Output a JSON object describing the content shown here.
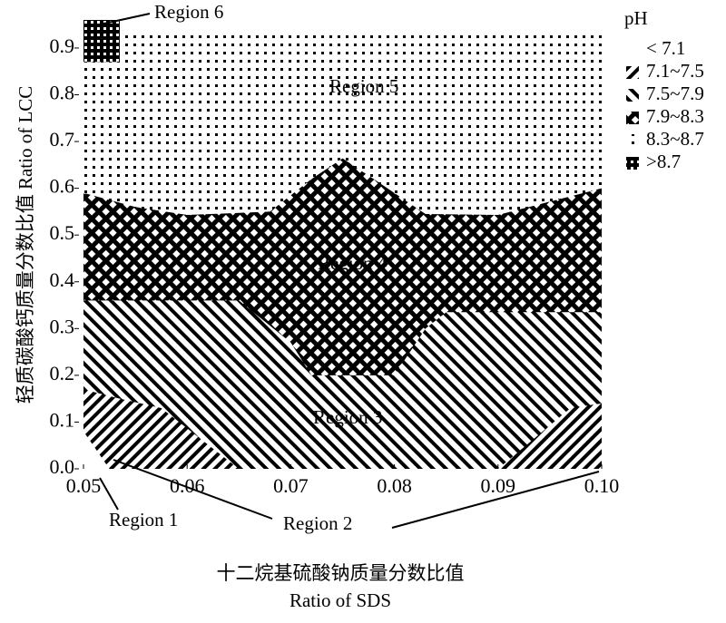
{
  "chart_data": {
    "type": "contour",
    "x_label": [
      "十二烷基硫酸钠质量分数比值",
      "Ratio of SDS"
    ],
    "y_label": "轻质碳酸钙质量分数比值 Ratio of LCC",
    "legend_title": "pH",
    "xlim": [
      0.05,
      0.1
    ],
    "ylim": [
      0,
      0.96
    ],
    "xticks": [
      0.05,
      0.06,
      0.07,
      0.08,
      0.09,
      {
        "value": 0.1,
        "label": "0.10"
      }
    ],
    "yticks": [
      {
        "value": 0,
        "label": "0.0"
      },
      0.1,
      0.2,
      0.3,
      0.4,
      0.5,
      0.6,
      0.7,
      0.8,
      0.9
    ],
    "series": [
      {
        "name": "< 7.1",
        "pattern": "none",
        "x": [
          0.05,
          0.0525,
          0.05
        ],
        "values": [
          0.08,
          0,
          0
        ]
      },
      {
        "name": "7.1~7.5",
        "pattern": "fwd",
        "x": [
          0.05,
          0.0535,
          0.0575,
          0.065,
          0.05,
          null,
          0.09,
          0.097,
          0.1,
          0.1
        ],
        "values": [
          0.17,
          0.15,
          0.13,
          0,
          0,
          null,
          0,
          0.13,
          0.14,
          0
        ]
      },
      {
        "name": "7.5~7.9",
        "pattern": "back",
        "x": [
          0.05,
          0.065,
          0.07,
          0.072,
          0.08,
          0.083,
          0.085,
          0.1,
          0.1,
          0.05
        ],
        "values": [
          0.36,
          0.36,
          0.27,
          0.2,
          0.2,
          0.3,
          0.335,
          0.335,
          0,
          0
        ]
      },
      {
        "name": "7.9~8.3",
        "pattern": "cross",
        "x": [
          0.05,
          0.055,
          0.06,
          0.068,
          0.072,
          0.075,
          0.078,
          0.083,
          0.09,
          0.1,
          0.1,
          0.05
        ],
        "values": [
          0.59,
          0.56,
          0.543,
          0.55,
          0.62,
          0.664,
          0.62,
          0.545,
          0.543,
          0.6,
          0,
          0
        ]
      },
      {
        "name": "8.3~8.7",
        "pattern": "dots",
        "x": [
          0.05,
          0.05,
          0.0535,
          0.0535,
          0.1,
          0.1
        ],
        "values": [
          0,
          0.87,
          0.87,
          0.935,
          0.935,
          0
        ]
      },
      {
        "name": ">8.7",
        "pattern": "squares",
        "x": [
          0.05,
          0.05,
          0.0535,
          0.0535
        ],
        "values": [
          0.87,
          0.96,
          0.96,
          0.87
        ]
      }
    ],
    "annotations": [
      "Region 1",
      "Region 2",
      "Region 3",
      "Region 4",
      "Region 5",
      "Region 6"
    ]
  }
}
